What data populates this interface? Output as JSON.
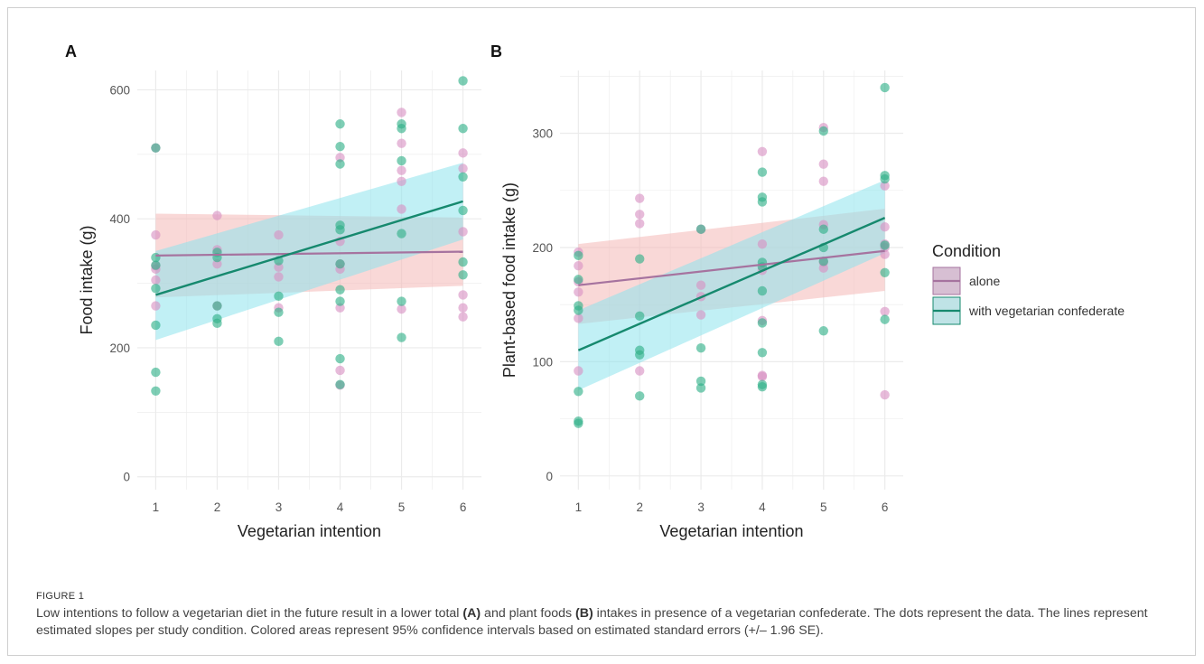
{
  "figure": {
    "label": "FIGURE 1",
    "caption": {
      "p1": "Low intentions to follow a vegetarian diet in the future result in a lower total ",
      "a": "(A)",
      "p2": " and plant foods ",
      "b": "(B)",
      "p3": " intakes in presence of a vegetarian confederate. The dots represent the data. The lines represent estimated slopes per study condition. Colored areas represent 95% confidence intervals based on estimated standard errors (+/– 1.96 SE)."
    }
  },
  "legend": {
    "title": "Condition",
    "items": [
      {
        "label": "alone",
        "line": "#a6739f",
        "fill": "#d7bfd3"
      },
      {
        "label": "with vegetarian confederate",
        "line": "#16896e",
        "fill": "#bfe3e6"
      }
    ]
  },
  "colors": {
    "alone_point": "#d891c4",
    "confed_point": "#2fb088",
    "alone_band": "#f4b8b6",
    "confed_band": "#8ee4ec",
    "alone_line": "#a6739f",
    "confed_line": "#16896e",
    "grid": "#ebebeb"
  },
  "chart_data": [
    {
      "panel": "A",
      "type": "scatter",
      "xlabel": "Vegetarian intention",
      "ylabel": "Food intake (g)",
      "xlim": [
        0.7,
        6.3
      ],
      "ylim": [
        -20,
        630
      ],
      "xticks": [
        1,
        2,
        3,
        4,
        5,
        6
      ],
      "yticks": [
        0,
        200,
        400,
        600
      ],
      "grid": true,
      "series": [
        {
          "name": "alone",
          "points": [
            [
              1,
              510
            ],
            [
              1,
              375
            ],
            [
              1,
              327
            ],
            [
              1,
              322
            ],
            [
              1,
              305
            ],
            [
              1,
              265
            ],
            [
              2,
              405
            ],
            [
              2,
              352
            ],
            [
              2,
              330
            ],
            [
              2,
              265
            ],
            [
              3,
              375
            ],
            [
              3,
              325
            ],
            [
              3,
              310
            ],
            [
              3,
              262
            ],
            [
              4,
              495
            ],
            [
              4,
              365
            ],
            [
              4,
              330
            ],
            [
              4,
              322
            ],
            [
              4,
              262
            ],
            [
              4,
              165
            ],
            [
              4,
              142
            ],
            [
              5,
              565
            ],
            [
              5,
              517
            ],
            [
              5,
              475
            ],
            [
              5,
              458
            ],
            [
              5,
              415
            ],
            [
              5,
              260
            ],
            [
              6,
              502
            ],
            [
              6,
              478
            ],
            [
              6,
              380
            ],
            [
              6,
              282
            ],
            [
              6,
              262
            ],
            [
              6,
              248
            ]
          ],
          "fit": {
            "x": [
              1,
              6
            ],
            "y": [
              343,
              349
            ]
          },
          "ci_low": {
            "x": [
              1,
              6
            ],
            "y": [
              278,
              296
            ]
          },
          "ci_high": {
            "x": [
              1,
              6
            ],
            "y": [
              408,
              402
            ]
          }
        },
        {
          "name": "with vegetarian confederate",
          "points": [
            [
              1,
              510
            ],
            [
              1,
              340
            ],
            [
              1,
              328
            ],
            [
              1,
              292
            ],
            [
              1,
              235
            ],
            [
              1,
              162
            ],
            [
              1,
              133
            ],
            [
              2,
              348
            ],
            [
              2,
              340
            ],
            [
              2,
              265
            ],
            [
              2,
              245
            ],
            [
              2,
              238
            ],
            [
              3,
              335
            ],
            [
              3,
              280
            ],
            [
              3,
              255
            ],
            [
              3,
              210
            ],
            [
              4,
              547
            ],
            [
              4,
              512
            ],
            [
              4,
              485
            ],
            [
              4,
              390
            ],
            [
              4,
              383
            ],
            [
              4,
              330
            ],
            [
              4,
              290
            ],
            [
              4,
              272
            ],
            [
              4,
              183
            ],
            [
              4,
              143
            ],
            [
              5,
              547
            ],
            [
              5,
              540
            ],
            [
              5,
              490
            ],
            [
              5,
              377
            ],
            [
              5,
              272
            ],
            [
              5,
              216
            ],
            [
              6,
              614
            ],
            [
              6,
              540
            ],
            [
              6,
              465
            ],
            [
              6,
              413
            ],
            [
              6,
              333
            ],
            [
              6,
              313
            ]
          ],
          "fit": {
            "x": [
              1,
              6
            ],
            "y": [
              282,
              427
            ]
          },
          "ci_low": {
            "x": [
              1,
              6
            ],
            "y": [
              212,
              368
            ]
          },
          "ci_high": {
            "x": [
              1,
              6
            ],
            "y": [
              350,
              487
            ]
          }
        }
      ]
    },
    {
      "panel": "B",
      "type": "scatter",
      "xlabel": "Vegetarian intention",
      "ylabel": "Plant-based food intake (g)",
      "xlim": [
        0.7,
        6.3
      ],
      "ylim": [
        -12,
        355
      ],
      "xticks": [
        1,
        2,
        3,
        4,
        5,
        6
      ],
      "yticks": [
        0,
        100,
        200,
        300
      ],
      "grid": true,
      "series": [
        {
          "name": "alone",
          "points": [
            [
              1,
              196
            ],
            [
              1,
              184
            ],
            [
              1,
              170
            ],
            [
              1,
              161
            ],
            [
              1,
              138
            ],
            [
              1,
              92
            ],
            [
              2,
              243
            ],
            [
              2,
              229
            ],
            [
              2,
              221
            ],
            [
              2,
              92
            ],
            [
              3,
              216
            ],
            [
              3,
              167
            ],
            [
              3,
              157
            ],
            [
              3,
              141
            ],
            [
              4,
              284
            ],
            [
              4,
              203
            ],
            [
              4,
              180
            ],
            [
              4,
              136
            ],
            [
              4,
              88
            ],
            [
              4,
              87
            ],
            [
              5,
              305
            ],
            [
              5,
              273
            ],
            [
              5,
              258
            ],
            [
              5,
              220
            ],
            [
              5,
              187
            ],
            [
              5,
              182
            ],
            [
              6,
              254
            ],
            [
              6,
              218
            ],
            [
              6,
              203
            ],
            [
              6,
              200
            ],
            [
              6,
              194
            ],
            [
              6,
              144
            ],
            [
              6,
              71
            ]
          ],
          "fit": {
            "x": [
              1,
              6
            ],
            "y": [
              167,
              197
            ]
          },
          "ci_low": {
            "x": [
              1,
              6
            ],
            "y": [
              133,
              162
            ]
          },
          "ci_high": {
            "x": [
              1,
              6
            ],
            "y": [
              203,
              234
            ]
          }
        },
        {
          "name": "with vegetarian confederate",
          "points": [
            [
              1,
              193
            ],
            [
              1,
              172
            ],
            [
              1,
              149
            ],
            [
              1,
              145
            ],
            [
              1,
              74
            ],
            [
              1,
              48
            ],
            [
              1,
              46
            ],
            [
              2,
              190
            ],
            [
              2,
              140
            ],
            [
              2,
              110
            ],
            [
              2,
              106
            ],
            [
              2,
              70
            ],
            [
              3,
              216
            ],
            [
              3,
              112
            ],
            [
              3,
              83
            ],
            [
              3,
              77
            ],
            [
              4,
              266
            ],
            [
              4,
              244
            ],
            [
              4,
              240
            ],
            [
              4,
              187
            ],
            [
              4,
              183
            ],
            [
              4,
              162
            ],
            [
              4,
              134
            ],
            [
              4,
              108
            ],
            [
              4,
              80
            ],
            [
              4,
              78
            ],
            [
              5,
              302
            ],
            [
              5,
              216
            ],
            [
              5,
              200
            ],
            [
              5,
              188
            ],
            [
              5,
              127
            ],
            [
              6,
              340
            ],
            [
              6,
              263
            ],
            [
              6,
              260
            ],
            [
              6,
              202
            ],
            [
              6,
              178
            ],
            [
              6,
              137
            ]
          ],
          "fit": {
            "x": [
              1,
              6
            ],
            "y": [
              110,
              226
            ]
          },
          "ci_low": {
            "x": [
              1,
              6
            ],
            "y": [
              75,
              195
            ]
          },
          "ci_high": {
            "x": [
              1,
              6
            ],
            "y": [
              145,
              259
            ]
          }
        }
      ]
    }
  ]
}
